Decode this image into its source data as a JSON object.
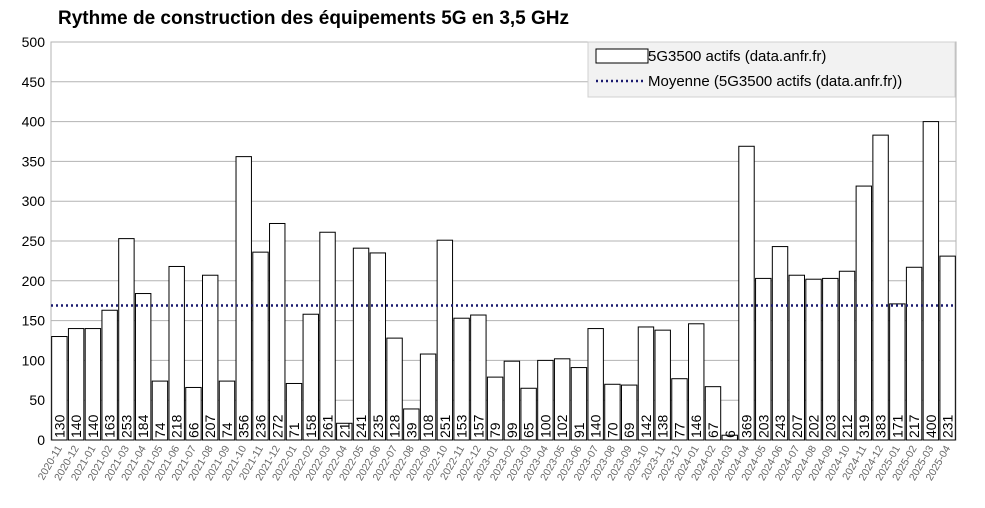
{
  "chart_data": {
    "type": "bar",
    "title": "Rythme de construction des équipements 5G en 3,5 GHz",
    "xlabel": "",
    "ylabel": "",
    "ylim": [
      0,
      500
    ],
    "yticks": [
      0,
      50,
      100,
      150,
      200,
      250,
      300,
      350,
      400,
      450,
      500
    ],
    "grid": true,
    "legend_position": "top-right",
    "categories": [
      "2020-11",
      "2020-12",
      "2021-01",
      "2021-02",
      "2021-03",
      "2021-04",
      "2021-05",
      "2021-06",
      "2021-07",
      "2021-08",
      "2021-09",
      "2021-10",
      "2021-11",
      "2021-12",
      "2022-01",
      "2022-02",
      "2022-03",
      "2022-04",
      "2022-05",
      "2022-06",
      "2022-07",
      "2022-08",
      "2022-09",
      "2022-10",
      "2022-11",
      "2022-12",
      "2023-01",
      "2023-02",
      "2023-03",
      "2023-04",
      "2023-05",
      "2023-06",
      "2023-07",
      "2023-08",
      "2023-09",
      "2023-10",
      "2023-11",
      "2023-12",
      "2024-01",
      "2024-02",
      "2024-03",
      "2024-04",
      "2024-05",
      "2024-06",
      "2024-07",
      "2024-08",
      "2024-09",
      "2024-10",
      "2024-11",
      "2024-12",
      "2025-01",
      "2025-02",
      "2025-03",
      "2025-04"
    ],
    "series": [
      {
        "name": "5G3500 actifs (data.anfr.fr)",
        "values": [
          130,
          140,
          140,
          163,
          253,
          184,
          74,
          218,
          66,
          207,
          74,
          356,
          236,
          272,
          71,
          158,
          261,
          21,
          241,
          235,
          128,
          39,
          108,
          251,
          153,
          157,
          79,
          99,
          65,
          100,
          102,
          91,
          140,
          70,
          69,
          142,
          138,
          77,
          146,
          67,
          6,
          369,
          203,
          243,
          207,
          202,
          203,
          212,
          319,
          383,
          171,
          217,
          400,
          231
        ],
        "bar_color": "#ffffff",
        "edge_color": "#000000"
      },
      {
        "name": "Moyenne (5G3500 actifs (data.anfr.fr))",
        "type": "line",
        "style": "dotted",
        "value": 169,
        "color": "#1a1a6e"
      }
    ],
    "colors": {
      "grid": "#b3b3b3",
      "plot_bg": "#ffffff",
      "legend_bg": "#f2f2f2"
    }
  }
}
